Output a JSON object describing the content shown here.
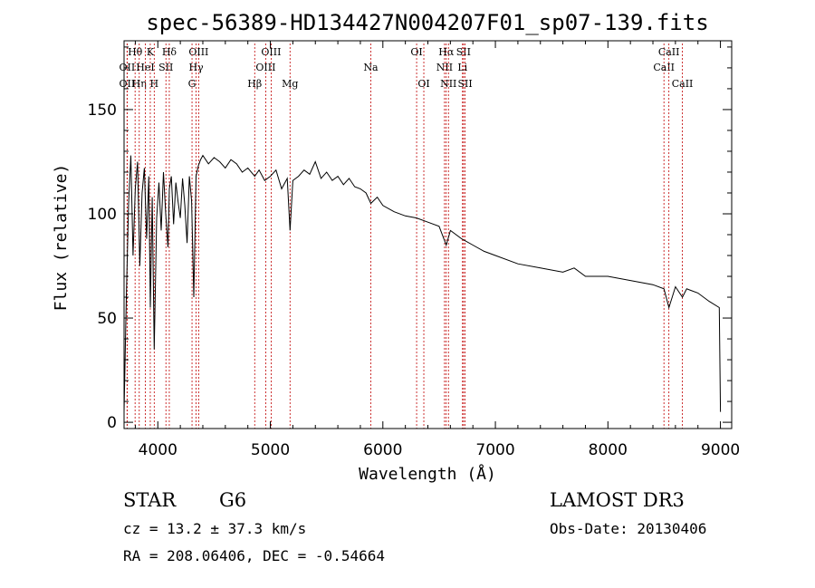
{
  "chart_data": {
    "type": "line",
    "title": "spec-56389-HD134427N004207F01_sp07-139.fits",
    "xlabel": "Wavelength (Å)",
    "ylabel": "Flux (relative)",
    "xlim": [
      3700,
      9100
    ],
    "ylim": [
      -3,
      183
    ],
    "xticks": [
      4000,
      5000,
      6000,
      7000,
      8000,
      9000
    ],
    "yticks": [
      0,
      50,
      100,
      150
    ],
    "grid": false,
    "series": [
      {
        "name": "spectrum",
        "x": [
          3700,
          3720,
          3740,
          3760,
          3780,
          3800,
          3820,
          3840,
          3860,
          3880,
          3900,
          3920,
          3933,
          3950,
          3968,
          3990,
          4010,
          4030,
          4050,
          4070,
          4090,
          4102,
          4120,
          4140,
          4160,
          4180,
          4200,
          4220,
          4240,
          4260,
          4280,
          4300,
          4320,
          4340,
          4360,
          4380,
          4400,
          4450,
          4500,
          4550,
          4600,
          4650,
          4700,
          4750,
          4800,
          4861,
          4900,
          4950,
          5000,
          5050,
          5100,
          5150,
          5175,
          5200,
          5250,
          5300,
          5350,
          5400,
          5450,
          5500,
          5550,
          5600,
          5650,
          5700,
          5750,
          5800,
          5850,
          5893,
          5950,
          6000,
          6100,
          6200,
          6300,
          6400,
          6500,
          6563,
          6600,
          6700,
          6800,
          6900,
          7000,
          7200,
          7400,
          7600,
          7700,
          7800,
          8000,
          8200,
          8400,
          8498,
          8542,
          8600,
          8662,
          8700,
          8800,
          8900,
          8990,
          9000
        ],
        "y": [
          5,
          60,
          105,
          128,
          80,
          112,
          125,
          75,
          110,
          122,
          88,
          118,
          55,
          108,
          35,
          98,
          115,
          92,
          120,
          100,
          84,
          112,
          118,
          95,
          115,
          106,
          98,
          117,
          104,
          86,
          118,
          106,
          60,
          118,
          123,
          126,
          128,
          124,
          127,
          125,
          122,
          126,
          124,
          120,
          122,
          118,
          121,
          116,
          118,
          121,
          112,
          117,
          92,
          116,
          118,
          121,
          119,
          125,
          117,
          120,
          116,
          118,
          114,
          117,
          113,
          112,
          110,
          105,
          108,
          104,
          101,
          99,
          98,
          96,
          94,
          85,
          92,
          88,
          85,
          82,
          80,
          76,
          74,
          72,
          74,
          70,
          70,
          68,
          66,
          64,
          55,
          65,
          60,
          64,
          62,
          58,
          55,
          5
        ],
        "color": "#000000"
      }
    ],
    "line_markers": [
      {
        "label": "OII",
        "x": 3727,
        "row": 2
      },
      {
        "label": "OII",
        "x": 3727,
        "row": 3
      },
      {
        "label": "Hθ",
        "x": 3798,
        "row": 1
      },
      {
        "label": "Hη",
        "x": 3835,
        "row": 3
      },
      {
        "label": "HeI",
        "x": 3889,
        "row": 2
      },
      {
        "label": "K",
        "x": 3933,
        "row": 1
      },
      {
        "label": "SII",
        "x": 4072,
        "row": 2
      },
      {
        "label": "H",
        "x": 3968,
        "row": 3
      },
      {
        "label": "Hδ",
        "x": 4102,
        "row": 1
      },
      {
        "label": "Hγ",
        "x": 4340,
        "row": 2
      },
      {
        "label": "OIII",
        "x": 4363,
        "row": 1
      },
      {
        "label": "G",
        "x": 4304,
        "row": 3
      },
      {
        "label": "Hβ",
        "x": 4861,
        "row": 3
      },
      {
        "label": "OIII",
        "x": 5007,
        "row": 1
      },
      {
        "label": "OIII",
        "x": 4959,
        "row": 2
      },
      {
        "label": "Mg",
        "x": 5175,
        "row": 3
      },
      {
        "label": "Na",
        "x": 5893,
        "row": 2
      },
      {
        "label": "OI",
        "x": 6300,
        "row": 1
      },
      {
        "label": "OI",
        "x": 6364,
        "row": 3
      },
      {
        "label": "NII",
        "x": 6548,
        "row": 2
      },
      {
        "label": "Hα",
        "x": 6563,
        "row": 1
      },
      {
        "label": "NII",
        "x": 6583,
        "row": 3
      },
      {
        "label": "SII",
        "x": 6717,
        "row": 1
      },
      {
        "label": "Li",
        "x": 6708,
        "row": 2
      },
      {
        "label": "SII",
        "x": 6731,
        "row": 3
      },
      {
        "label": "CaII",
        "x": 8498,
        "row": 2
      },
      {
        "label": "CaII",
        "x": 8542,
        "row": 1
      },
      {
        "label": "CaII",
        "x": 8662,
        "row": 3
      }
    ]
  },
  "info": {
    "class_label": "STAR",
    "subclass": "G6",
    "cz": "cz = 13.2 ± 37.3 km/s",
    "coords": "RA = 208.06406, DEC =  -0.54664",
    "survey": "LAMOST DR3",
    "obs_date": "Obs-Date: 20130406"
  }
}
